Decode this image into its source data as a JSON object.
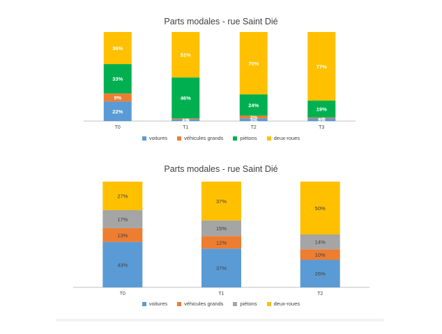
{
  "chart_data": [
    {
      "type": "bar",
      "stacked": true,
      "normalized": true,
      "title": "Parts modales - rue Saint Dié",
      "categories": [
        "T0",
        "T1",
        "T2",
        "T3"
      ],
      "series": [
        {
          "name": "voitures",
          "color": "#5b9bd5",
          "values": [
            22,
            2,
            3,
            3
          ]
        },
        {
          "name": "véhicules grands",
          "color": "#ed7d31",
          "values": [
            9,
            1,
            3,
            1
          ]
        },
        {
          "name": "piétons",
          "color": "#00b050",
          "values": [
            33,
            46,
            24,
            19
          ]
        },
        {
          "name": "deux-roues",
          "color": "#ffc000",
          "values": [
            36,
            51,
            70,
            77
          ]
        }
      ],
      "legend": "bottom",
      "grid": false
    },
    {
      "type": "bar",
      "stacked": true,
      "normalized": true,
      "title": "Parts modales - rue Saint Dié",
      "categories": [
        "T0",
        "T1",
        "T2"
      ],
      "series": [
        {
          "name": "voitures",
          "color": "#5b9bd5",
          "values": [
            43,
            37,
            26
          ]
        },
        {
          "name": "véhicules grands",
          "color": "#ed7d31",
          "values": [
            13,
            12,
            10
          ]
        },
        {
          "name": "piétons",
          "color": "#a5a5a5",
          "values": [
            17,
            15,
            14
          ]
        },
        {
          "name": "deux-roues",
          "color": "#ffc000",
          "values": [
            27,
            37,
            50
          ]
        }
      ],
      "legend": "bottom",
      "grid": false
    }
  ]
}
